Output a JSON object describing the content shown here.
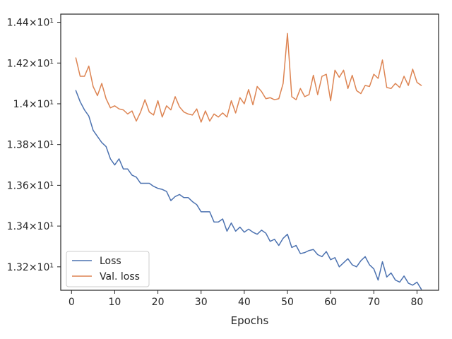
{
  "chart_data": {
    "type": "line",
    "title": "",
    "xlabel": "Epochs",
    "ylabel": "",
    "grid": false,
    "xlim": [
      -2.5,
      85
    ],
    "ylim": [
      13.085,
      14.44
    ],
    "xticks": [
      0,
      10,
      20,
      30,
      40,
      50,
      60,
      70,
      80
    ],
    "xtick_labels": [
      "0",
      "10",
      "20",
      "30",
      "40",
      "50",
      "60",
      "70",
      "80"
    ],
    "yticks": [
      13.2,
      13.4,
      13.6,
      13.8,
      14.0,
      14.2,
      14.4
    ],
    "ytick_labels": [
      "1.32×10¹",
      "1.34×10¹",
      "1.36×10¹",
      "1.38×10¹",
      "1.4×10¹",
      "1.42×10¹",
      "1.44×10¹"
    ],
    "legend_position": "lower-left",
    "x": [
      1,
      2,
      3,
      4,
      5,
      6,
      7,
      8,
      9,
      10,
      11,
      12,
      13,
      14,
      15,
      16,
      17,
      18,
      19,
      20,
      21,
      22,
      23,
      24,
      25,
      26,
      27,
      28,
      29,
      30,
      31,
      32,
      33,
      34,
      35,
      36,
      37,
      38,
      39,
      40,
      41,
      42,
      43,
      44,
      45,
      46,
      47,
      48,
      49,
      50,
      51,
      52,
      53,
      54,
      55,
      56,
      57,
      58,
      59,
      60,
      61,
      62,
      63,
      64,
      65,
      66,
      67,
      68,
      69,
      70,
      71,
      72,
      73,
      74,
      75,
      76,
      77,
      78,
      79,
      80,
      81
    ],
    "series": [
      {
        "name": "Loss",
        "color": "#4c72b0",
        "values": [
          14.065,
          14.01,
          13.97,
          13.94,
          13.87,
          13.84,
          13.81,
          13.79,
          13.73,
          13.7,
          13.73,
          13.68,
          13.68,
          13.65,
          13.64,
          13.61,
          13.61,
          13.61,
          13.595,
          13.585,
          13.58,
          13.57,
          13.525,
          13.545,
          13.555,
          13.54,
          13.54,
          13.52,
          13.505,
          13.47,
          13.47,
          13.47,
          13.42,
          13.42,
          13.435,
          13.375,
          13.415,
          13.375,
          13.395,
          13.37,
          13.385,
          13.37,
          13.36,
          13.38,
          13.365,
          13.325,
          13.335,
          13.305,
          13.34,
          13.36,
          13.295,
          13.305,
          13.265,
          13.27,
          13.28,
          13.285,
          13.26,
          13.25,
          13.275,
          13.235,
          13.245,
          13.2,
          13.22,
          13.24,
          13.21,
          13.2,
          13.23,
          13.25,
          13.21,
          13.19,
          13.135,
          13.225,
          13.15,
          13.17,
          13.135,
          13.125,
          13.155,
          13.12,
          13.11,
          13.125,
          13.09
        ]
      },
      {
        "name": "Val. loss",
        "color": "#dd8452",
        "values": [
          14.225,
          14.135,
          14.135,
          14.185,
          14.085,
          14.04,
          14.1,
          14.025,
          13.98,
          13.99,
          13.975,
          13.97,
          13.95,
          13.965,
          13.915,
          13.96,
          14.02,
          13.96,
          13.945,
          14.015,
          13.935,
          13.99,
          13.97,
          14.035,
          13.985,
          13.96,
          13.95,
          13.945,
          13.975,
          13.91,
          13.965,
          13.915,
          13.95,
          13.935,
          13.955,
          13.935,
          14.015,
          13.955,
          14.03,
          14.0,
          14.07,
          13.995,
          14.085,
          14.06,
          14.025,
          14.03,
          14.02,
          14.025,
          14.1,
          14.345,
          14.035,
          14.02,
          14.075,
          14.035,
          14.045,
          14.14,
          14.045,
          14.135,
          14.145,
          14.015,
          14.165,
          14.13,
          14.165,
          14.075,
          14.14,
          14.065,
          14.05,
          14.09,
          14.085,
          14.145,
          14.125,
          14.215,
          14.08,
          14.075,
          14.1,
          14.08,
          14.135,
          14.09,
          14.17,
          14.105,
          14.09
        ]
      }
    ]
  }
}
